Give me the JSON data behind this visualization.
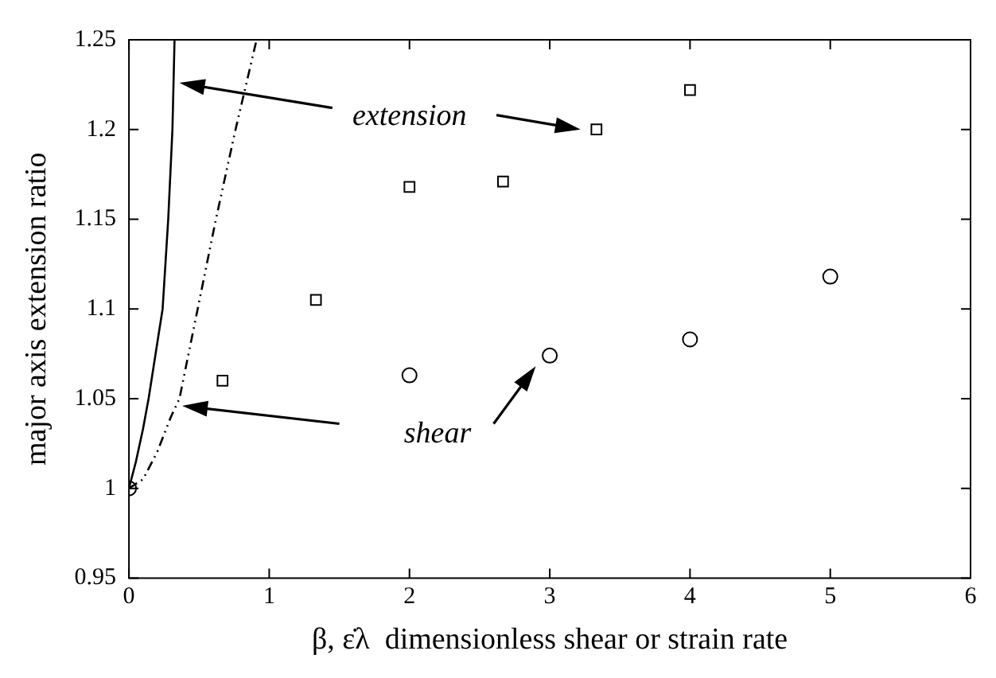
{
  "chart_data": {
    "type": "scatter",
    "xlabel": "β, ε̇λ  dimensionless shear or strain rate",
    "ylabel": "major axis extension ratio",
    "xlim": [
      0,
      6
    ],
    "xticks": [
      0,
      1,
      2,
      3,
      4,
      5,
      6
    ],
    "ylim": [
      0.95,
      1.25
    ],
    "yticks": [
      0.95,
      1,
      1.05,
      1.1,
      1.15,
      1.2,
      1.25
    ],
    "grid": false,
    "legend": false,
    "annotations": [
      "extension",
      "shear"
    ],
    "series": [
      {
        "marker": "square",
        "color": "#000000",
        "x": [
          0.667,
          1.333,
          2,
          2.667,
          3.333,
          4
        ],
        "values": [
          1.06,
          1.105,
          1.168,
          1.171,
          1.2,
          1.222
        ]
      },
      {
        "marker": "circle",
        "color": "#000000",
        "x": [
          0,
          2,
          3,
          4,
          5
        ],
        "values": [
          1.0,
          1.063,
          1.074,
          1.083,
          1.118
        ]
      },
      {
        "type": "line",
        "marker": "none",
        "line_style": "solid",
        "color": "#000000",
        "x": [
          0,
          0.05,
          0.1,
          0.14,
          0.2,
          0.24,
          0.28,
          0.31,
          0.325
        ],
        "values": [
          1.0,
          1.015,
          1.033,
          1.05,
          1.08,
          1.1,
          1.15,
          1.2,
          1.25
        ]
      },
      {
        "type": "line",
        "marker": "none",
        "line_style": "dashed",
        "color": "#000000",
        "x": [
          0,
          0.1,
          0.2,
          0.3,
          0.36,
          0.49,
          0.62,
          0.76,
          0.91
        ],
        "values": [
          1.0,
          1.005,
          1.02,
          1.04,
          1.05,
          1.1,
          1.15,
          1.2,
          1.25
        ]
      }
    ]
  }
}
